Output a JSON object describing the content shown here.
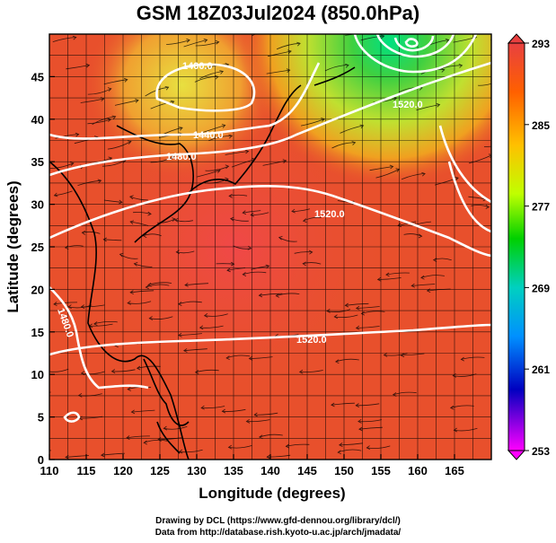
{
  "title": "GSM 18Z03Jul2024 (850.0hPa)",
  "x_axis": {
    "label": "Longitude (degrees)",
    "ticks": [
      "110",
      "115",
      "120",
      "125",
      "130",
      "135",
      "140",
      "145",
      "150",
      "155",
      "160",
      "165"
    ],
    "tick_values": [
      110,
      115,
      120,
      125,
      130,
      135,
      140,
      145,
      150,
      155,
      160,
      165
    ],
    "range": [
      110,
      170
    ]
  },
  "y_axis": {
    "label": "Latitude  (degrees)",
    "ticks": [
      "0",
      "5",
      "10",
      "15",
      "20",
      "25",
      "30",
      "35",
      "40",
      "45"
    ],
    "tick_values": [
      0,
      5,
      10,
      15,
      20,
      25,
      30,
      35,
      40,
      45
    ],
    "range": [
      0,
      50
    ]
  },
  "colorbar": {
    "labels": [
      "293",
      "285",
      "277",
      "269",
      "261",
      "253"
    ],
    "range": [
      253,
      293
    ],
    "colors": [
      "#ff00ff",
      "#0000c0",
      "#0090ff",
      "#00d0c0",
      "#00d000",
      "#c0ff00",
      "#ffc000",
      "#ff6000",
      "#e84040"
    ]
  },
  "contour_labels": [
    {
      "text": "1400.0"
    },
    {
      "text": "1440.0"
    },
    {
      "text": "1480.0"
    },
    {
      "text": "1520.0"
    },
    {
      "text": "1520.0"
    },
    {
      "text": "1480.0"
    },
    {
      "text": "1520.0"
    }
  ],
  "credits": {
    "line1": "Drawing by DCL (https://www.gfd-dennou.org/library/dcl/)",
    "line2": "Data from http://database.rish.kyoto-u.ac.jp/arch/jmadata/"
  },
  "colors": {
    "warm_background": "#e8502c",
    "hot_core": "#f04848",
    "cool_yellow": "#e8d040",
    "cool_green": "#40d040",
    "streamline": "#000000",
    "contour": "#ffffff"
  }
}
